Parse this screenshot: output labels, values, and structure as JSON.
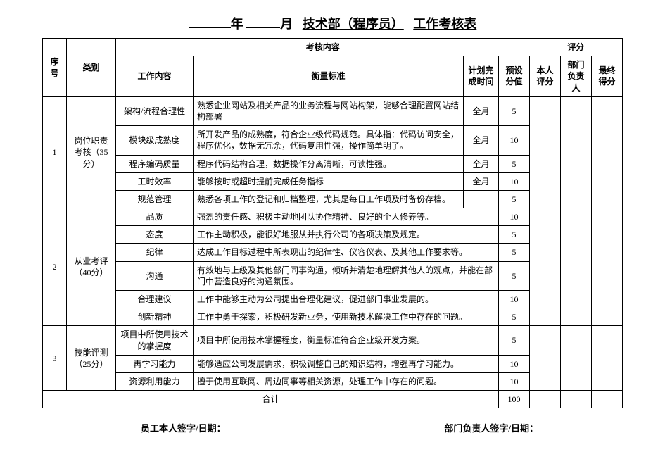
{
  "title": {
    "year_label": "年",
    "month_label": "月",
    "dept": "技术部（程序员）",
    "suffix": "工作考核表"
  },
  "headers": {
    "seq": "序号",
    "category": "类别",
    "content": "考核内容",
    "score": "评分",
    "work_item": "工作内容",
    "standard": "衡量标准",
    "plan_time": "计划完成时间",
    "preset": "预设分值",
    "self": "本人评分",
    "dept": "部门负责人",
    "final": "最终得分"
  },
  "sections": [
    {
      "seq": "1",
      "category": "岗位职责考核（35分）",
      "rows": [
        {
          "item": "架构/流程合理性",
          "std": "熟悉企业网站及相关产品的业务流程与网站构架，能够合理配置网站结构部署",
          "time": "全月",
          "preset": "5"
        },
        {
          "item": "模块级成熟度",
          "std": "所开发产品的成熟度，符合企业级代码规范。具体指：代码访问安全，程序优化，数据无冗余，代码复用性强，操作简单明了。",
          "time": "全月",
          "preset": "10"
        },
        {
          "item": "程序编码质量",
          "std": "程序代码结构合理，数据操作分离清晰，可读性强。",
          "time": "全月",
          "preset": "5"
        },
        {
          "item": "工时效率",
          "std": "能够按时或超时提前完成任务指标",
          "time": "全月",
          "preset": "10"
        },
        {
          "item": "规范管理",
          "std": "熟悉各项工作的登记和归档整理，尤其是每日工作项及时备份存档。",
          "time": "",
          "preset": "5"
        }
      ]
    },
    {
      "seq": "2",
      "category": "从业考评（40分）",
      "rows": [
        {
          "item": "品质",
          "std": "强烈的责任感、积极主动地团队协作精神、良好的个人修养等。",
          "preset": "10"
        },
        {
          "item": "态度",
          "std": "工作主动积极，能很好地服从并执行公司的各项决策及规定。",
          "preset": "5"
        },
        {
          "item": "纪律",
          "std": "达成工作目标过程中所表现出的纪律性、仪容仪表、及其他工作要求等。",
          "preset": "5"
        },
        {
          "item": "沟通",
          "std": "有效地与上级及其他部门同事沟通，倾听并清楚地理解其他人的观点，并能在部门中营造良好的沟通氛围。",
          "preset": "5"
        },
        {
          "item": "合理建议",
          "std": "工作中能够主动为公司提出合理化建议，促进部门事业发展的。",
          "preset": "10"
        },
        {
          "item": "创新精神",
          "std": "工作中勇于探索，积极研发新业务，使用新技术解决工作中存在的问题。",
          "preset": "5"
        }
      ]
    },
    {
      "seq": "3",
      "category": "技能评测（25分）",
      "rows": [
        {
          "item": "项目中所使用技术的掌握度",
          "std": "项目中所使用技术掌握程度，衡量标准符合企业级开发方案。",
          "preset": "5"
        },
        {
          "item": "再学习能力",
          "std": "能够适应公司发展需求，积极调整自己的知识结构，增强再学习能力。",
          "preset": "10"
        },
        {
          "item": "资源利用能力",
          "std": "擅于使用互联网、周边同事等相关资源，处理工作中存在的问题。",
          "preset": "10"
        }
      ]
    }
  ],
  "total": {
    "label": "合计",
    "value": "100"
  },
  "sign": {
    "self": "员工本人签字/日期：",
    "dept": "部门负责人签字/日期："
  },
  "style": {
    "border_color": "#000000",
    "bg": "#ffffff",
    "header_fontsize": 12,
    "body_fontsize": 12,
    "title_fontsize": 18
  }
}
